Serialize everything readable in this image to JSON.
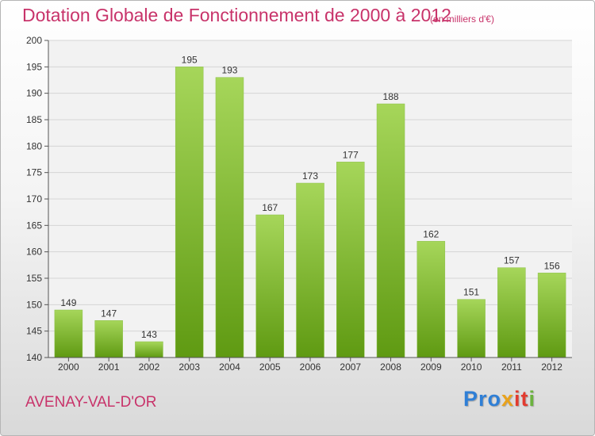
{
  "header": {
    "title": "Dotation Globale de Fonctionnement de 2000 à 2012",
    "subtitle": "(en milliers d'€)"
  },
  "footer": {
    "commune": "AVENAY-VAL-D'OR",
    "logo": [
      "Pro",
      "x",
      "it",
      "i"
    ]
  },
  "colors": {
    "title": "#c8336a",
    "bar_light": "#a6d65a",
    "bar_dark": "#5f9a12",
    "plot_bg": "#f2f2f2",
    "grid": "#d5d5d5"
  },
  "chart_data": {
    "type": "bar",
    "categories": [
      "2000",
      "2001",
      "2002",
      "2003",
      "2004",
      "2005",
      "2006",
      "2007",
      "2008",
      "2009",
      "2010",
      "2011",
      "2012"
    ],
    "values": [
      149,
      147,
      143,
      195,
      193,
      167,
      173,
      177,
      188,
      162,
      151,
      157,
      156
    ],
    "ylim": [
      140,
      200
    ],
    "yticks": [
      140,
      145,
      150,
      155,
      160,
      165,
      170,
      175,
      180,
      185,
      190,
      195,
      200
    ],
    "grid": true,
    "data_labels": true
  }
}
